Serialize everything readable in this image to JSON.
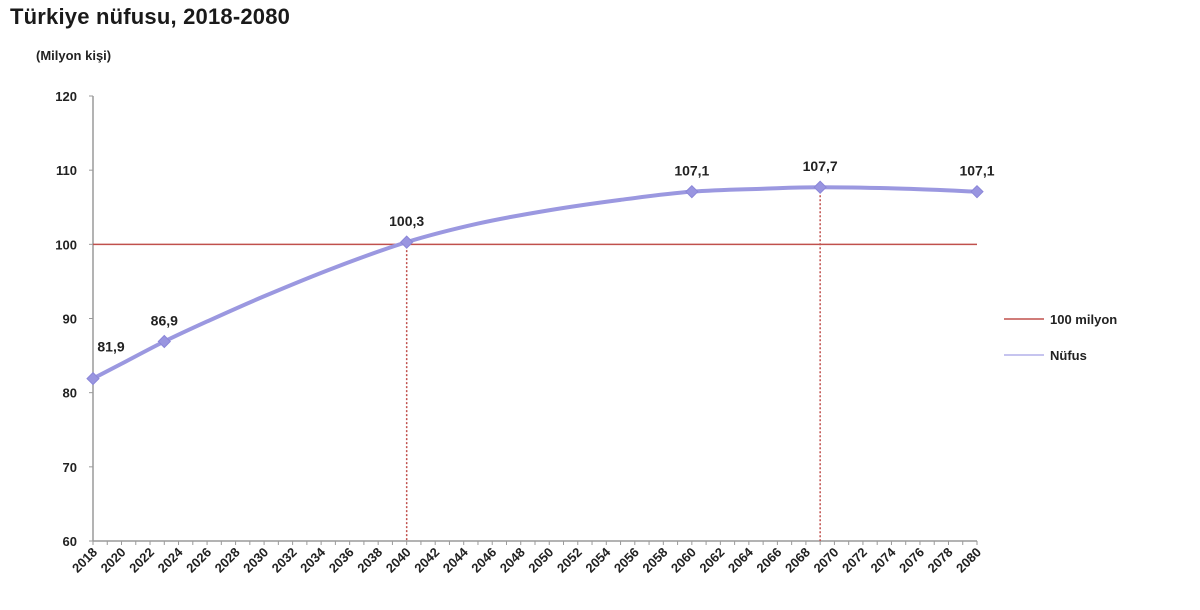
{
  "header": {
    "title": "Türkiye nüfusu, 2018-2080",
    "unit_label": "(Milyon kişi)"
  },
  "colors": {
    "population_line": "#9b98e0",
    "threshold_line": "#c0504d",
    "dropline": "#c0504d",
    "axis": "#9a9a9a"
  },
  "legend": {
    "items": [
      {
        "label": "100 milyon",
        "color": "#c0504d"
      },
      {
        "label": "Nüfus",
        "color": "#b3b0ea"
      }
    ]
  },
  "chart_data": {
    "type": "line",
    "title": "Türkiye nüfusu, 2018-2080",
    "xlabel": "",
    "ylabel": "(Milyon kişi)",
    "ylim": [
      60,
      120
    ],
    "xlim": [
      2018,
      2080
    ],
    "y_ticks": [
      60,
      70,
      80,
      90,
      100,
      110,
      120
    ],
    "x_ticks": [
      2018,
      2020,
      2022,
      2024,
      2026,
      2028,
      2030,
      2032,
      2034,
      2036,
      2038,
      2040,
      2042,
      2044,
      2046,
      2048,
      2050,
      2052,
      2054,
      2056,
      2058,
      2060,
      2062,
      2064,
      2066,
      2068,
      2070,
      2072,
      2074,
      2076,
      2078,
      2080
    ],
    "grid": false,
    "legend_position": "right",
    "series": [
      {
        "name": "Nüfus",
        "x": [
          2018,
          2020,
          2023,
          2026,
          2030,
          2035,
          2040,
          2045,
          2050,
          2055,
          2060,
          2065,
          2069,
          2075,
          2080
        ],
        "values": [
          81.9,
          83.9,
          86.9,
          89.6,
          93.0,
          96.9,
          100.3,
          102.8,
          104.6,
          106.0,
          107.1,
          107.5,
          107.7,
          107.5,
          107.1
        ]
      },
      {
        "name": "100 milyon",
        "x": [
          2018,
          2080
        ],
        "values": [
          100,
          100
        ]
      }
    ],
    "annotations": [
      {
        "x": 2018,
        "y": 81.9,
        "label": "81,9"
      },
      {
        "x": 2023,
        "y": 86.9,
        "label": "86,9"
      },
      {
        "x": 2040,
        "y": 100.3,
        "label": "100,3"
      },
      {
        "x": 2060,
        "y": 107.1,
        "label": "107,1"
      },
      {
        "x": 2069,
        "y": 107.7,
        "label": "107,7"
      },
      {
        "x": 2080,
        "y": 107.1,
        "label": "107,1"
      }
    ],
    "droplines": [
      2040,
      2069
    ]
  }
}
